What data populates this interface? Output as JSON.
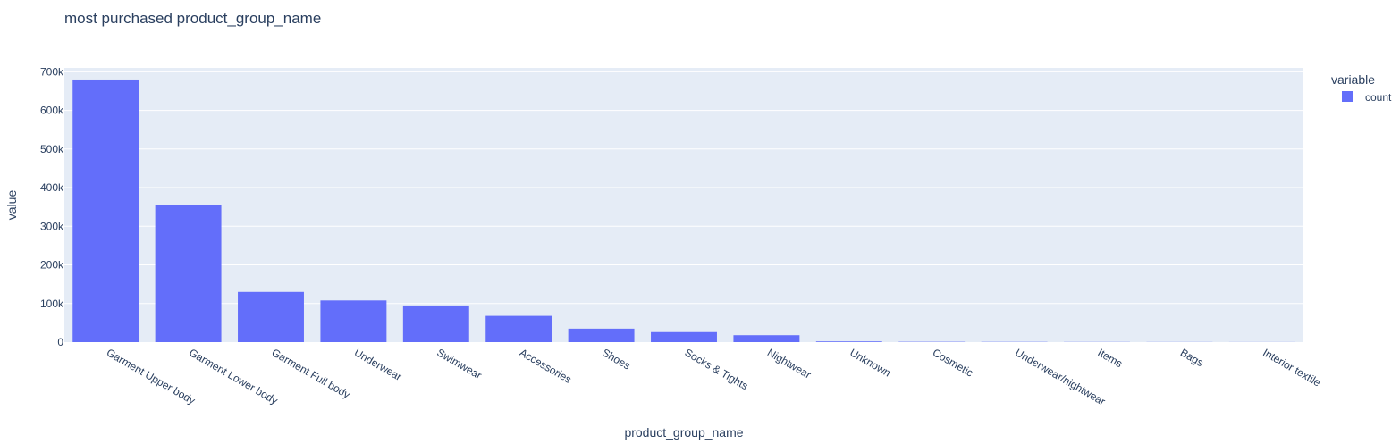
{
  "colors": {
    "plot_background": "#e5ecf6",
    "grid": "#ffffff",
    "bar": "#636efa",
    "text": "#2a3f5f"
  },
  "chart_data": {
    "type": "bar",
    "title": "most purchased product_group_name",
    "xlabel": "product_group_name",
    "ylabel": "value",
    "ylim": [
      0,
      710000
    ],
    "yticks": [
      0,
      100000,
      200000,
      300000,
      400000,
      500000,
      600000,
      700000
    ],
    "ytick_labels": [
      "0",
      "100k",
      "200k",
      "300k",
      "400k",
      "500k",
      "600k",
      "700k"
    ],
    "grid": true,
    "legend_title": "variable",
    "legend_position": "top-right",
    "categories": [
      "Garment Upper body",
      "Garment Lower body",
      "Garment Full body",
      "Underwear",
      "Swimwear",
      "Accessories",
      "Shoes",
      "Socks & Tights",
      "Nightwear",
      "Unknown",
      "Cosmetic",
      "Underwear/nightwear",
      "Items",
      "Bags",
      "Interior textile"
    ],
    "series": [
      {
        "name": "count",
        "values": [
          680000,
          355000,
          130000,
          108000,
          95000,
          68000,
          35000,
          26000,
          18000,
          1800,
          800,
          600,
          400,
          300,
          200
        ]
      }
    ]
  }
}
